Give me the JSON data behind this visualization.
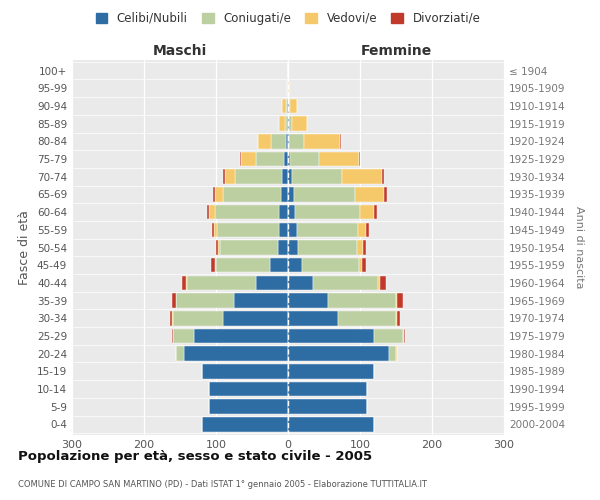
{
  "age_groups": [
    "0-4",
    "5-9",
    "10-14",
    "15-19",
    "20-24",
    "25-29",
    "30-34",
    "35-39",
    "40-44",
    "45-49",
    "50-54",
    "55-59",
    "60-64",
    "65-69",
    "70-74",
    "75-79",
    "80-84",
    "85-89",
    "90-94",
    "95-99",
    "100+"
  ],
  "birth_years": [
    "2000-2004",
    "1995-1999",
    "1990-1994",
    "1985-1989",
    "1980-1984",
    "1975-1979",
    "1970-1974",
    "1965-1969",
    "1960-1964",
    "1955-1959",
    "1950-1954",
    "1945-1949",
    "1940-1944",
    "1935-1939",
    "1930-1934",
    "1925-1929",
    "1920-1924",
    "1915-1919",
    "1910-1914",
    "1905-1909",
    "≤ 1904"
  ],
  "maschi": {
    "celibi": [
      120,
      110,
      110,
      120,
      145,
      130,
      90,
      75,
      45,
      25,
      14,
      13,
      12,
      10,
      8,
      5,
      3,
      1,
      1,
      0,
      0
    ],
    "coniugati": [
      0,
      0,
      0,
      0,
      10,
      30,
      70,
      80,
      95,
      75,
      80,
      85,
      90,
      80,
      65,
      40,
      20,
      3,
      2,
      0,
      0
    ],
    "vedovi": [
      0,
      0,
      0,
      0,
      0,
      0,
      1,
      1,
      2,
      2,
      3,
      5,
      8,
      12,
      15,
      20,
      18,
      8,
      5,
      1,
      0
    ],
    "divorziati": [
      0,
      0,
      0,
      0,
      0,
      1,
      3,
      5,
      5,
      5,
      3,
      3,
      3,
      2,
      2,
      1,
      0,
      0,
      0,
      0,
      0
    ]
  },
  "femmine": {
    "nubili": [
      120,
      110,
      110,
      120,
      140,
      120,
      70,
      55,
      35,
      20,
      14,
      12,
      10,
      8,
      5,
      3,
      2,
      1,
      1,
      0,
      0
    ],
    "coniugate": [
      0,
      0,
      0,
      0,
      10,
      40,
      80,
      95,
      90,
      78,
      82,
      85,
      90,
      85,
      70,
      40,
      20,
      5,
      2,
      0,
      0
    ],
    "vedove": [
      0,
      0,
      0,
      0,
      1,
      1,
      2,
      2,
      3,
      5,
      8,
      12,
      20,
      40,
      55,
      55,
      50,
      20,
      10,
      1,
      0
    ],
    "divorziate": [
      0,
      0,
      0,
      0,
      0,
      1,
      3,
      8,
      8,
      5,
      5,
      4,
      3,
      4,
      3,
      2,
      1,
      0,
      0,
      0,
      0
    ]
  },
  "colors": {
    "celibi": "#2E6DA4",
    "coniugati": "#BCCFA0",
    "vedovi": "#F5C96A",
    "divorziati": "#C0392B"
  },
  "title": "Popolazione per età, sesso e stato civile - 2005",
  "subtitle": "COMUNE DI CAMPO SAN MARTINO (PD) - Dati ISTAT 1° gennaio 2005 - Elaborazione TUTTITALIA.IT",
  "xlabel_left": "Maschi",
  "xlabel_right": "Femmine",
  "ylabel_left": "Fasce di età",
  "ylabel_right": "Anni di nascita",
  "xlim": 300,
  "legend_labels": [
    "Celibi/Nubili",
    "Coniugati/e",
    "Vedovi/e",
    "Divorziati/e"
  ],
  "bg_color": "#eaeaea"
}
